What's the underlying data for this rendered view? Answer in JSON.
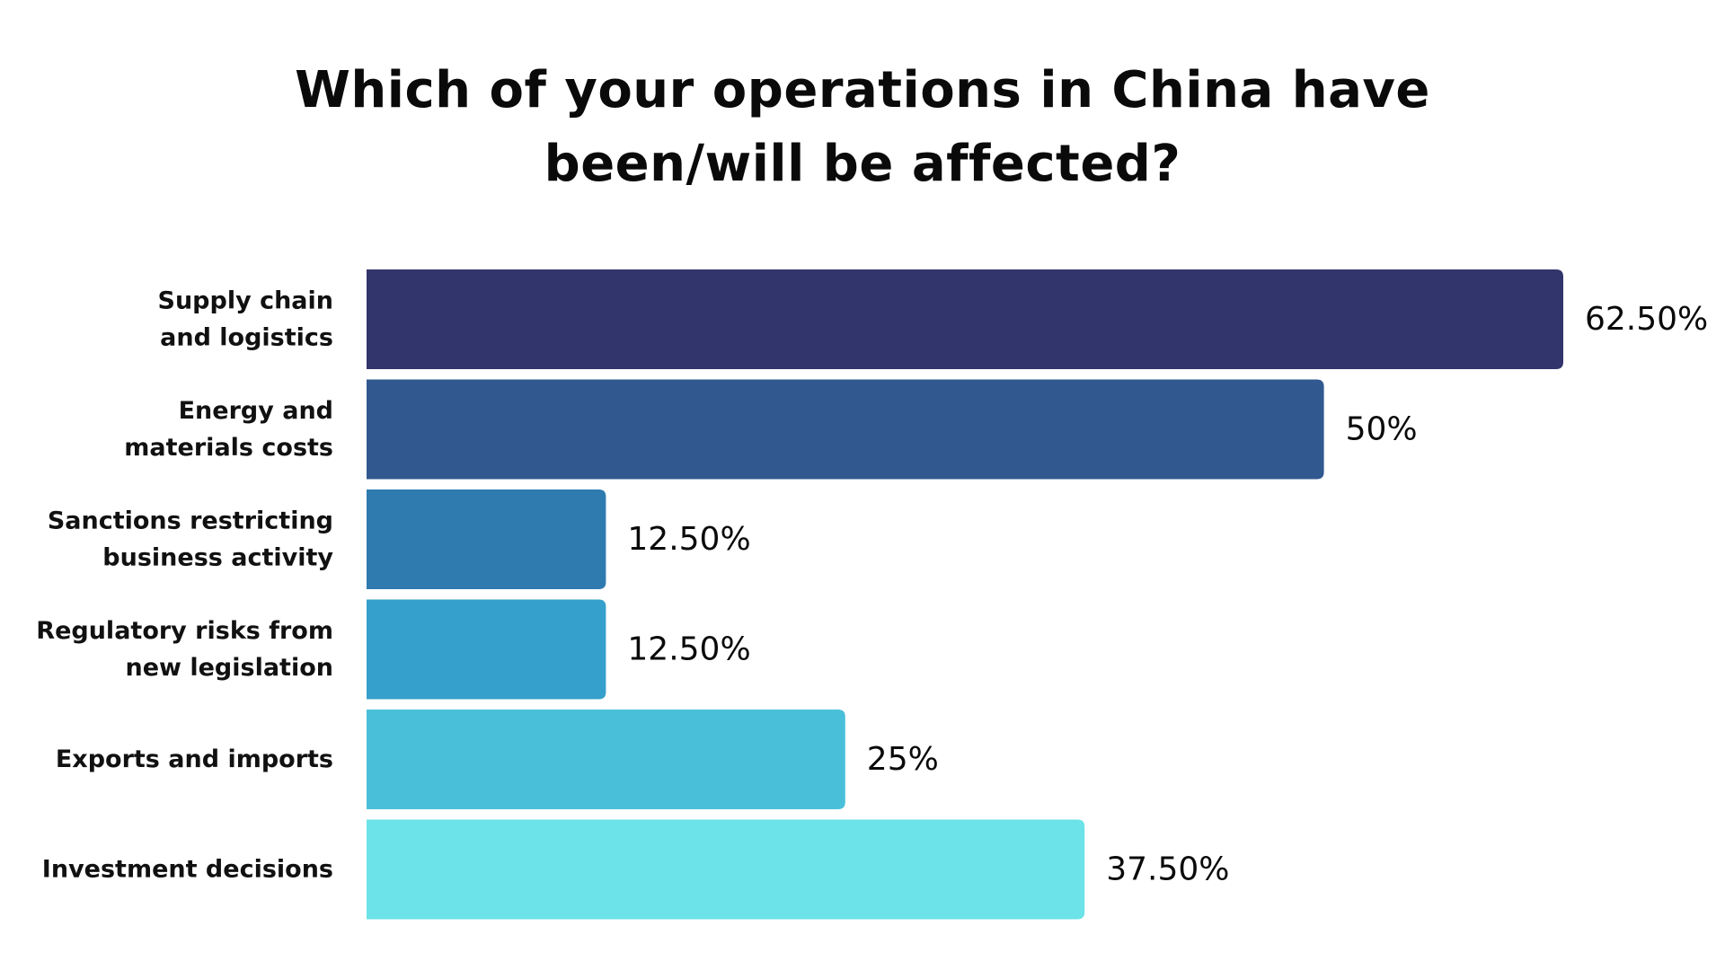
{
  "chart_data": {
    "type": "bar",
    "orientation": "horizontal",
    "title_lines": [
      "Which of your operations in China have",
      "been/will be affected?"
    ],
    "categories": [
      [
        "Supply chain",
        "and logistics"
      ],
      [
        "Energy and",
        "materials costs"
      ],
      [
        "Sanctions restricting",
        "business activity"
      ],
      [
        "Regulatory risks from",
        "new legislation"
      ],
      [
        "Exports and imports"
      ],
      [
        "Investment decisions"
      ]
    ],
    "values": [
      62.5,
      50,
      12.5,
      12.5,
      25,
      37.5
    ],
    "value_labels": [
      "62.50%",
      "50%",
      "12.50%",
      "12.50%",
      "25%",
      "37.50%"
    ],
    "colors": [
      "#32356b",
      "#31598f",
      "#2f7bb0",
      "#35a0cb",
      "#4abfd9",
      "#6ce3e8"
    ],
    "xlim": [
      0,
      62.5
    ],
    "grid": false,
    "legend": "none"
  }
}
